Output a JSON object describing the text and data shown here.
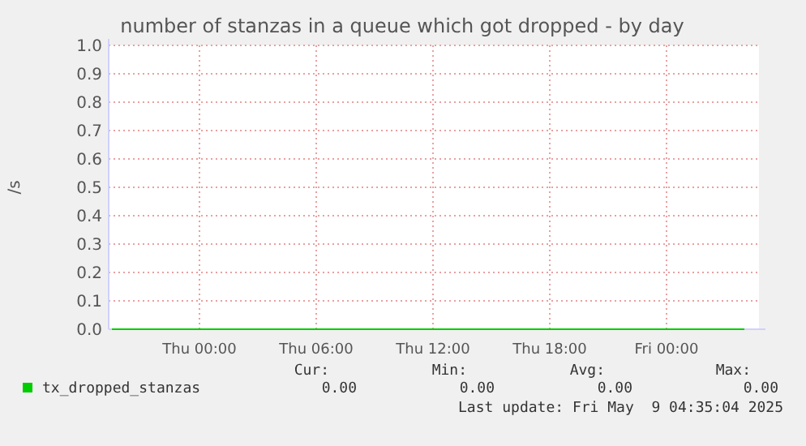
{
  "chart_data": {
    "type": "line",
    "title": "number of stanzas in a queue which got dropped - by day",
    "ylabel": "/s",
    "x": [
      "2025-05-07T19:30",
      "2025-05-08T00:00",
      "2025-05-08T06:00",
      "2025-05-08T12:00",
      "2025-05-08T18:00",
      "2025-05-09T00:00",
      "2025-05-09T04:00"
    ],
    "series": [
      {
        "name": "tx_dropped_stanzas",
        "color": "#00cc00",
        "values": [
          0,
          0,
          0,
          0,
          0,
          0,
          0
        ]
      }
    ],
    "xlim": [
      "2025-05-07T19:20",
      "2025-05-09T04:45"
    ],
    "xticks": [
      {
        "value": "2025-05-08T00:00",
        "label": "Thu 00:00"
      },
      {
        "value": "2025-05-08T06:00",
        "label": "Thu 06:00"
      },
      {
        "value": "2025-05-08T12:00",
        "label": "Thu 12:00"
      },
      {
        "value": "2025-05-08T18:00",
        "label": "Thu 18:00"
      },
      {
        "value": "2025-05-09T00:00",
        "label": "Fri 00:00"
      }
    ],
    "ylim": [
      0,
      1
    ],
    "yticks": [
      {
        "value": 0,
        "label": "0.0"
      },
      {
        "value": 0.1,
        "label": "0.1"
      },
      {
        "value": 0.2,
        "label": "0.2"
      },
      {
        "value": 0.3,
        "label": "0.3"
      },
      {
        "value": 0.4,
        "label": "0.4"
      },
      {
        "value": 0.5,
        "label": "0.5"
      },
      {
        "value": 0.6,
        "label": "0.6"
      },
      {
        "value": 0.7,
        "label": "0.7"
      },
      {
        "value": 0.8,
        "label": "0.8"
      },
      {
        "value": 0.9,
        "label": "0.9"
      },
      {
        "value": 1,
        "label": "1.0"
      }
    ],
    "grid": true,
    "legend": "bottom",
    "marker": "none",
    "line_style": "solid",
    "annotations": [
      "Cur:",
      "Min:",
      "Avg:",
      "Max:",
      "0.00",
      "0.00",
      "0.00",
      "0.00",
      "Last update: Fri May  9 04:35:04 2025"
    ]
  }
}
